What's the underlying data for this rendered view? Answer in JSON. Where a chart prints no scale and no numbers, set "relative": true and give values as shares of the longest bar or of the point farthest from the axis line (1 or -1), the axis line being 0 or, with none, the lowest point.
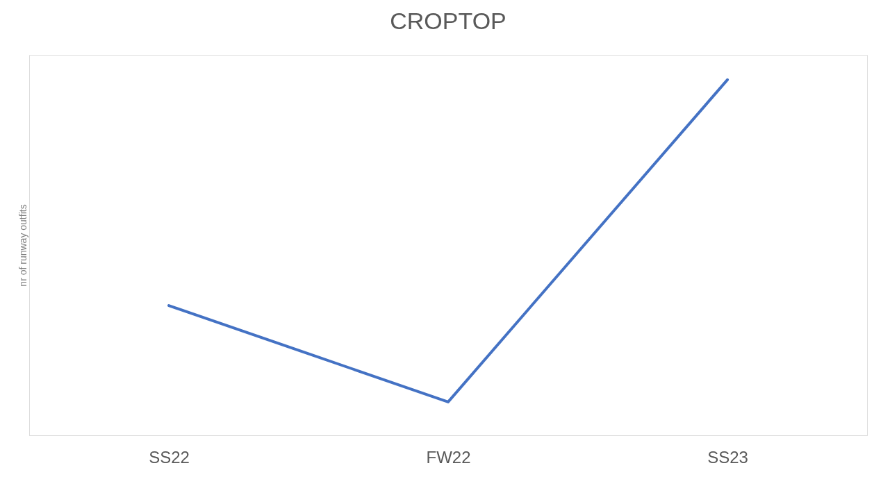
{
  "chart_data": {
    "type": "line",
    "title": "CROPTOP",
    "ylabel": "nr of runway outfits",
    "relative": true,
    "categories": [
      "SS22",
      "FW22",
      "SS23"
    ],
    "series": [
      {
        "color": "#4472c4",
        "values": [
          0.365,
          0.094,
          1
        ]
      }
    ],
    "grid": false,
    "marker": "none",
    "line_style": "solid"
  }
}
